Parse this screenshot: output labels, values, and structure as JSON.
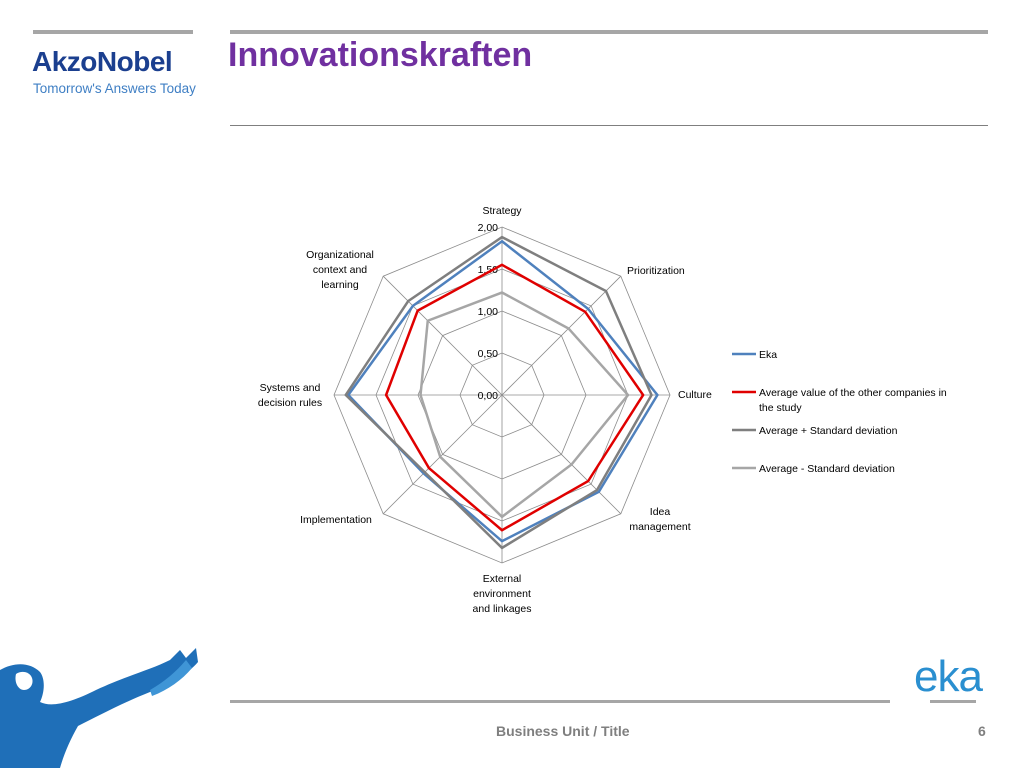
{
  "header": {
    "logo_name": "AkzoNobel",
    "logo_tagline": "Tomorrow's Answers Today",
    "title": "Innovationskraften"
  },
  "footer": {
    "text": "Business Unit / Title",
    "page_number": "6",
    "brand_logo": "eka"
  },
  "colors": {
    "title": "#7030a0",
    "logo": "#1b3f8f",
    "eka": "#4f81bd",
    "average": "#e00000",
    "plus_sd": "#7f7f7f",
    "minus_sd": "#a6a6a6"
  },
  "chart_data": {
    "type": "radar",
    "axes": [
      [
        "Strategy"
      ],
      [
        "Prioritization"
      ],
      [
        "Culture"
      ],
      [
        "Idea",
        "management"
      ],
      [
        "External",
        "environment",
        "and linkages"
      ],
      [
        "Implementation"
      ],
      [
        "Systems and",
        "decision rules"
      ],
      [
        "Organizational",
        "context and",
        "learning"
      ]
    ],
    "scale": {
      "min": 0,
      "max": 2,
      "ticks": [
        "0,00",
        "0,50",
        "1,00",
        "1,50",
        "2,00"
      ]
    },
    "series": [
      {
        "name": "Eka",
        "color": "#4f81bd",
        "values": [
          1.83,
          1.45,
          1.85,
          1.63,
          1.74,
          1.32,
          1.83,
          1.5
        ]
      },
      {
        "name": "Average value of the other companies in the study",
        "color": "#e00000",
        "values": [
          1.55,
          1.4,
          1.68,
          1.45,
          1.61,
          1.23,
          1.38,
          1.42
        ]
      },
      {
        "name": "Average + Standard deviation",
        "color": "#7f7f7f",
        "values": [
          1.88,
          1.75,
          1.78,
          1.6,
          1.82,
          1.3,
          1.86,
          1.58
        ]
      },
      {
        "name": "Average - Standard deviation",
        "color": "#a6a6a6",
        "values": [
          1.22,
          1.12,
          1.5,
          1.17,
          1.45,
          1.04,
          0.97,
          1.25
        ]
      }
    ],
    "legend": "right"
  }
}
